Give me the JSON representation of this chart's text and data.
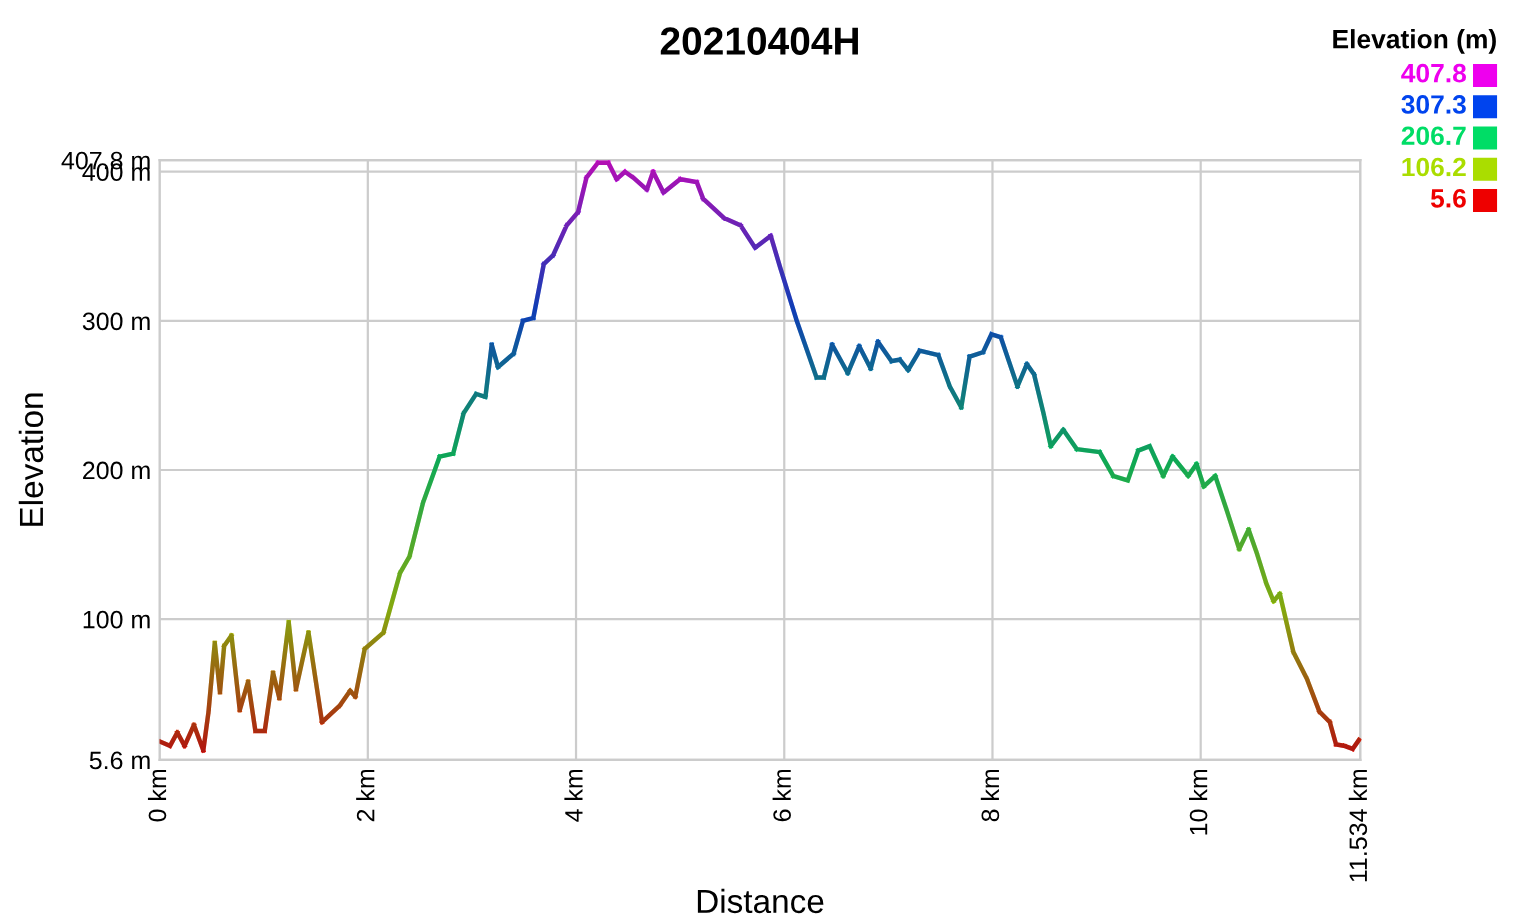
{
  "chart_data": {
    "type": "line",
    "title": "20210404H",
    "xlabel": "Distance",
    "ylabel": "Elevation",
    "clabel": "Elevation (m)",
    "x": [
      0,
      0.1,
      0.17,
      0.24,
      0.33,
      0.42,
      0.47,
      0.53,
      0.58,
      0.62,
      0.69,
      0.77,
      0.85,
      0.92,
      1.01,
      1.09,
      1.15,
      1.24,
      1.31,
      1.43,
      1.56,
      1.73,
      1.83,
      1.88,
      1.97,
      2.15,
      2.31,
      2.4,
      2.53,
      2.69,
      2.82,
      2.92,
      3.04,
      3.13,
      3.19,
      3.25,
      3.4,
      3.49,
      3.59,
      3.69,
      3.78,
      3.91,
      4.02,
      4.1,
      4.21,
      4.31,
      4.39,
      4.47,
      4.55,
      4.68,
      4.74,
      4.84,
      5.0,
      5.16,
      5.22,
      5.42,
      5.58,
      5.72,
      5.87,
      5.96,
      6.12,
      6.31,
      6.38,
      6.46,
      6.61,
      6.72,
      6.83,
      6.9,
      7.03,
      7.11,
      7.19,
      7.3,
      7.48,
      7.59,
      7.7,
      7.78,
      7.91,
      7.99,
      8.08,
      8.24,
      8.33,
      8.4,
      8.49,
      8.56,
      8.68,
      8.81,
      9.03,
      9.16,
      9.3,
      9.4,
      9.51,
      9.64,
      9.73,
      9.88,
      9.96,
      10.03,
      10.14,
      10.25,
      10.37,
      10.46,
      10.54,
      10.63,
      10.7,
      10.76,
      10.89,
      11.02,
      11.14,
      11.24,
      11.3,
      11.38,
      11.46,
      11.52
    ],
    "values": [
      18,
      15,
      24,
      15,
      29,
      12,
      38,
      84,
      51,
      82,
      89,
      39,
      58,
      25,
      25,
      64,
      47,
      98,
      53,
      91,
      31,
      42,
      52,
      48,
      80,
      91,
      131,
      142,
      178,
      209,
      211,
      238,
      251,
      249,
      284,
      269,
      278,
      300,
      302,
      338,
      344,
      364,
      373,
      396,
      406,
      406,
      395,
      400,
      396,
      388,
      400,
      386,
      395,
      393,
      382,
      369,
      364,
      349,
      357,
      336,
      300,
      262,
      262,
      284,
      265,
      283,
      268,
      286,
      273,
      274,
      267,
      280,
      277,
      256,
      242,
      276,
      279,
      291,
      289,
      256,
      271,
      264,
      238,
      216,
      227,
      214,
      212,
      196,
      193,
      213,
      216,
      196,
      209,
      196,
      204,
      189,
      196,
      173,
      147,
      160,
      144,
      124,
      112,
      117,
      78,
      60,
      38,
      31,
      16,
      15,
      13,
      19
    ],
    "xlim": [
      0,
      11.534
    ],
    "xticks": [
      {
        "value": 0,
        "label": "0 km"
      },
      {
        "value": 2,
        "label": "2 km"
      },
      {
        "value": 4,
        "label": "4 km"
      },
      {
        "value": 6,
        "label": "6 km"
      },
      {
        "value": 8,
        "label": "8 km"
      },
      {
        "value": 10,
        "label": "10 km"
      },
      {
        "value": 11.534,
        "label": "11.534 km"
      }
    ],
    "ylim": [
      5.6,
      407.8
    ],
    "yticks": [
      {
        "value": 5.6,
        "label": "5.6 m"
      },
      {
        "value": 100,
        "label": "100 m"
      },
      {
        "value": 200,
        "label": "200 m"
      },
      {
        "value": 300,
        "label": "300 m"
      },
      {
        "value": 400,
        "label": "400 m"
      },
      {
        "value": 407.8,
        "label": "407.8 m"
      }
    ],
    "cticks": [
      5.6,
      106.2,
      206.7,
      307.3,
      407.8
    ],
    "grid": true,
    "marker": "none",
    "line_style": "solid"
  }
}
